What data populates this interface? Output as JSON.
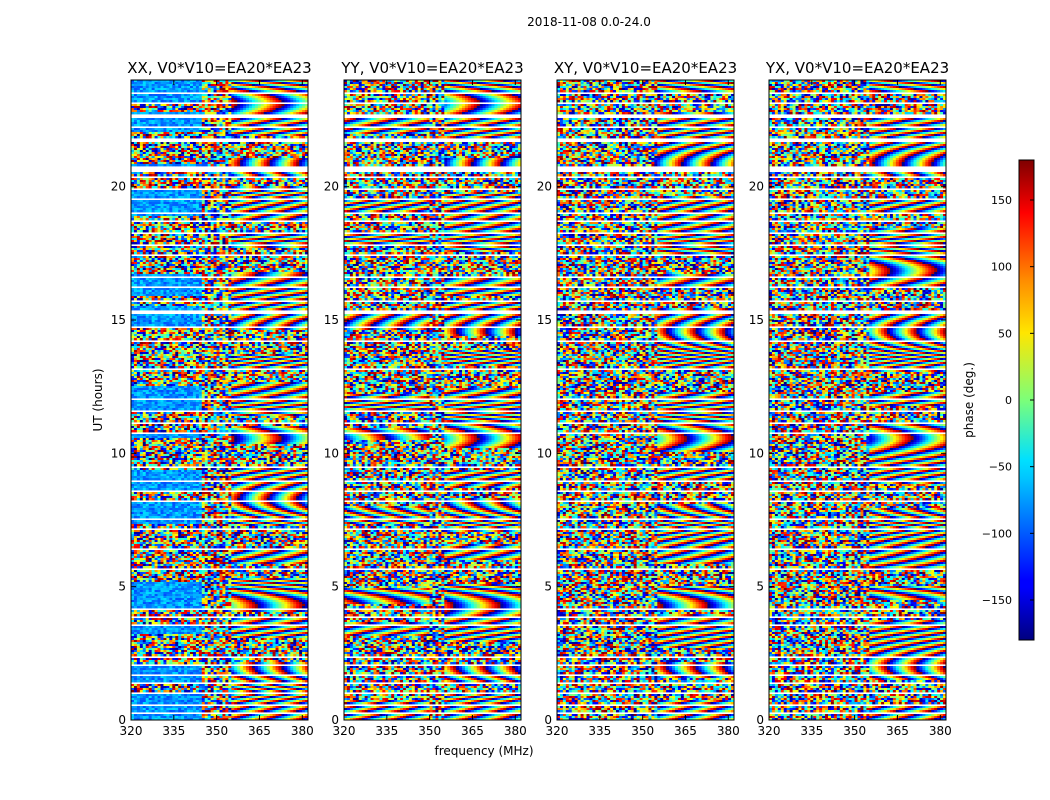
{
  "chart_data": {
    "type": "heatmap",
    "title": "2018-11-08 0.0-24.0",
    "xlabel": "frequency (MHz)",
    "ylabel": "UT (hours)",
    "xlim": [
      320,
      382
    ],
    "ylim": [
      0,
      24
    ],
    "x_ticks": [
      320,
      335,
      350,
      365,
      380
    ],
    "y_ticks": [
      0,
      5,
      10,
      15,
      20
    ],
    "panels": [
      {
        "title": "XX, V0*V10=EA20*EA23"
      },
      {
        "title": "YY, V0*V10=EA20*EA23"
      },
      {
        "title": "XY, V0*V10=EA20*EA23"
      },
      {
        "title": "YX, V0*V10=EA20*EA23"
      }
    ],
    "colorbar": {
      "label": "phase (deg.)",
      "range": [
        -180,
        180
      ],
      "ticks": [
        -150,
        -100,
        -50,
        0,
        50,
        100,
        150
      ],
      "colormap": "jet"
    },
    "flagged_ut_bands_hours": [
      [
        0.2,
        0.27
      ],
      [
        0.55,
        0.6
      ],
      [
        0.95,
        1.02
      ],
      [
        1.35,
        1.4
      ],
      [
        1.65,
        1.75
      ],
      [
        2.05,
        2.1
      ],
      [
        2.3,
        2.38
      ],
      [
        2.6,
        2.65
      ],
      [
        2.9,
        2.95
      ],
      [
        3.2,
        3.25
      ],
      [
        3.5,
        3.6
      ],
      [
        3.85,
        3.9
      ],
      [
        4.15,
        4.2
      ],
      [
        4.4,
        4.45
      ],
      [
        4.7,
        4.75
      ],
      [
        5.0,
        5.05
      ],
      [
        5.3,
        5.35
      ],
      [
        5.65,
        5.7
      ],
      [
        6.05,
        6.1
      ],
      [
        6.4,
        6.45
      ],
      [
        6.8,
        6.85
      ],
      [
        7.15,
        7.2
      ],
      [
        7.5,
        7.55
      ],
      [
        7.85,
        7.9
      ],
      [
        8.2,
        8.25
      ],
      [
        8.55,
        8.6
      ],
      [
        8.95,
        9.0
      ],
      [
        9.45,
        9.5
      ],
      [
        10.7,
        10.8
      ],
      [
        11.1,
        11.15
      ],
      [
        11.55,
        11.6
      ],
      [
        12.0,
        12.05
      ],
      [
        12.5,
        12.55
      ],
      [
        13.1,
        13.2
      ],
      [
        13.7,
        13.75
      ],
      [
        14.2,
        14.25
      ],
      [
        14.7,
        14.75
      ],
      [
        15.2,
        15.35
      ],
      [
        15.7,
        15.75
      ],
      [
        16.2,
        16.25
      ],
      [
        16.6,
        16.65
      ],
      [
        17.0,
        17.05
      ],
      [
        17.4,
        17.45
      ],
      [
        17.8,
        17.85
      ],
      [
        18.2,
        18.3
      ],
      [
        18.7,
        18.75
      ],
      [
        19.0,
        19.08
      ],
      [
        19.5,
        19.55
      ],
      [
        19.9,
        19.95
      ],
      [
        20.3,
        20.4
      ],
      [
        20.55,
        20.75
      ],
      [
        21.2,
        21.25
      ],
      [
        21.7,
        21.8
      ],
      [
        22.2,
        22.25
      ],
      [
        22.6,
        22.7
      ],
      [
        23.1,
        23.15
      ],
      [
        23.5,
        23.55
      ]
    ]
  }
}
